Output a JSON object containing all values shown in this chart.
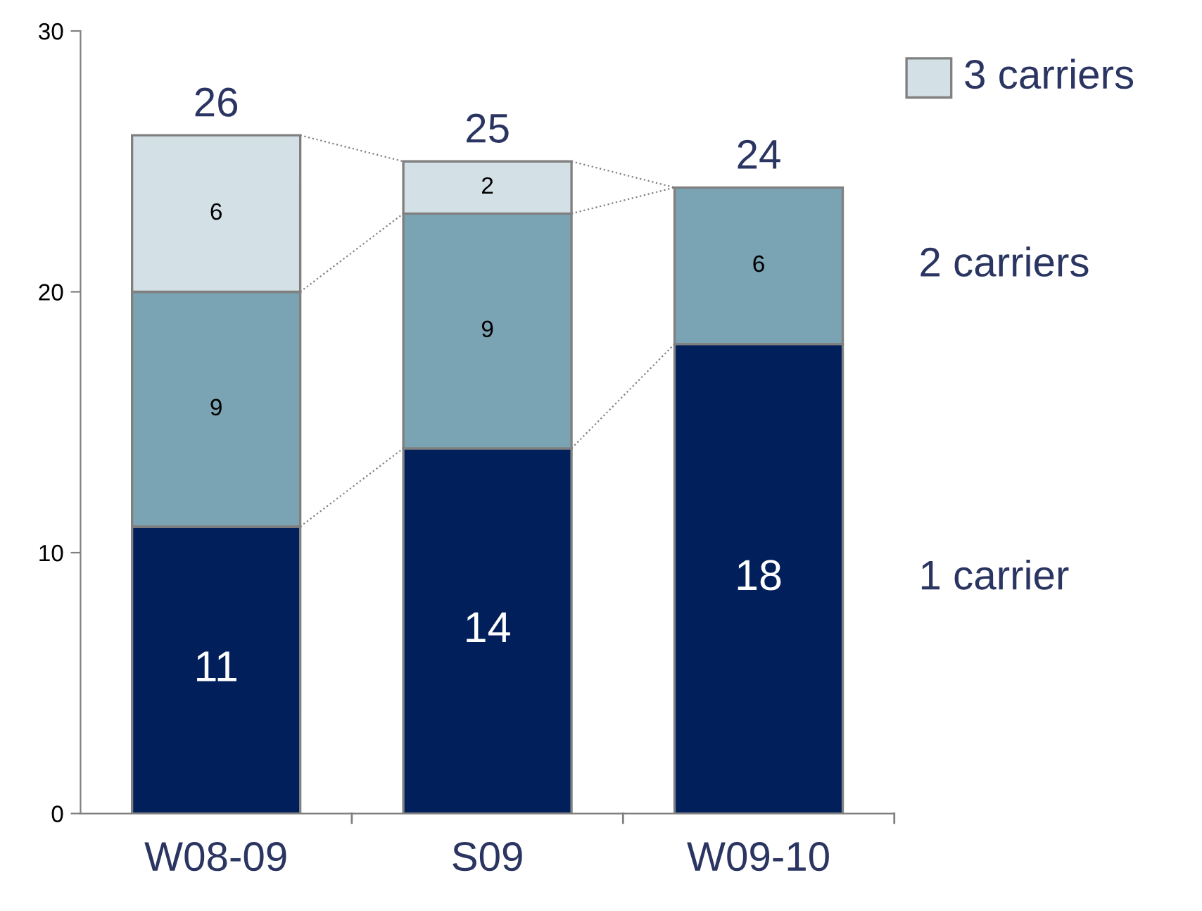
{
  "chart_data": {
    "type": "bar",
    "stacked": true,
    "categories": [
      "W08-09",
      "S09",
      "W09-10"
    ],
    "series": [
      {
        "name": "1 carrier",
        "color": "#001f5b",
        "values": [
          11,
          14,
          18
        ]
      },
      {
        "name": "2 carriers",
        "color": "#7aa3b3",
        "values": [
          9,
          9,
          6
        ]
      },
      {
        "name": "3 carriers",
        "color": "#d3e0e6",
        "values": [
          6,
          2,
          null
        ]
      }
    ],
    "totals": [
      "26",
      "25",
      "24"
    ],
    "data_labels": true,
    "ylim": [
      0,
      30
    ],
    "yticks": [
      0,
      10,
      20,
      30
    ],
    "grid": false
  }
}
